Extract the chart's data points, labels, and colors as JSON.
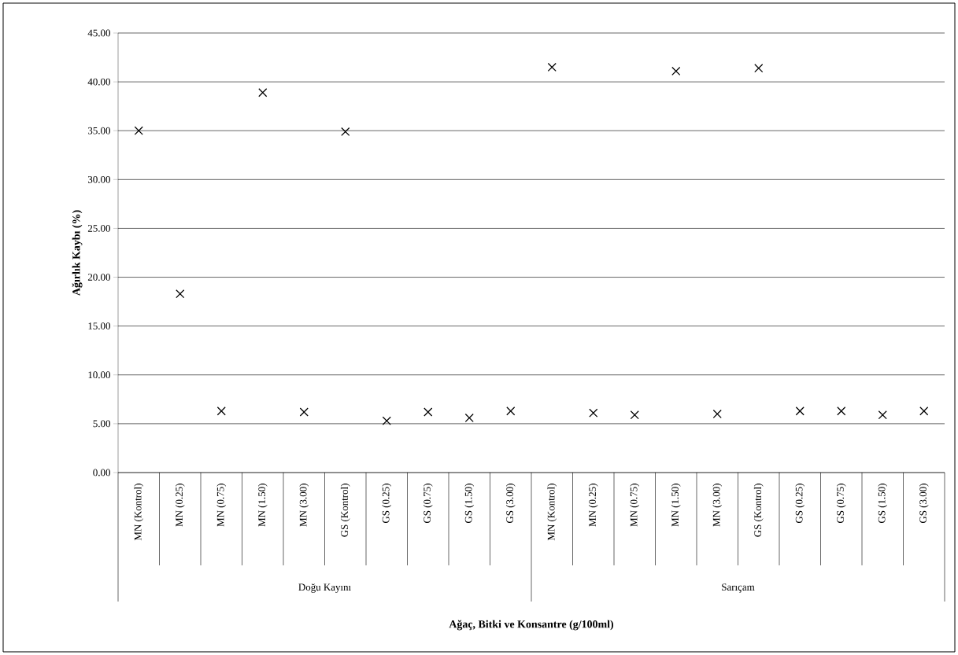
{
  "chart_data": {
    "type": "scatter",
    "ylabel": "Ağırlık Kaybı (%)",
    "categories": [
      "MN (Kontrol)",
      "MN (0.25)",
      "MN (0.75)",
      "MN (1.50)",
      "MN (3.00)",
      "GS (Kontrol)",
      "GS (0.25)",
      "GS (0.75)",
      "GS (1.50)",
      "GS (3.00)",
      "MN (Kontrol)",
      "MN (0.25)",
      "MN (0.75)",
      "MN (1.50)",
      "MN (3.00)",
      "GS (Kontrol)",
      "GS (0.25)",
      "GS (0.75)",
      "GS (1.50)",
      "GS (3.00)"
    ],
    "annotations": [
      "Doğu Kayını",
      "Sarıçam",
      "Ağaç, Bitki ve Konsantre (g/100ml)"
    ],
    "values": [
      35.0,
      18.3,
      6.3,
      38.9,
      6.2,
      34.9,
      5.3,
      6.2,
      5.6,
      6.3,
      41.5,
      6.1,
      5.9,
      41.1,
      6.0,
      41.4,
      6.3,
      6.3,
      5.9,
      6.3
    ],
    "color": "#000000",
    "marker": "cross",
    "grid": "y",
    "ylim": [
      0,
      45
    ],
    "yticks": [
      {
        "value": 0,
        "label": "0.00"
      },
      {
        "value": 5,
        "label": "5.00"
      },
      {
        "value": 10,
        "label": "10.00"
      },
      {
        "value": 15,
        "label": "15.00"
      },
      {
        "value": 20,
        "label": "20.00"
      },
      {
        "value": 25,
        "label": "25.00"
      },
      {
        "value": 30,
        "label": "30.00"
      },
      {
        "value": 35,
        "label": "35.00"
      },
      {
        "value": 40,
        "label": "40.00"
      },
      {
        "value": 45,
        "label": "45.00"
      }
    ]
  }
}
